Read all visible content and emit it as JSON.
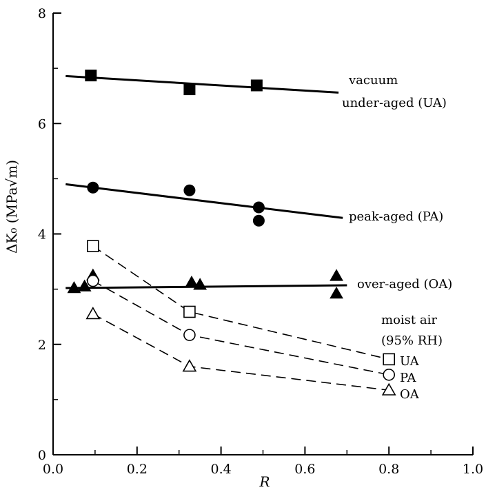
{
  "chart_data": {
    "type": "scatter",
    "xlabel": "R",
    "ylabel": "ΔK₀ (MPa√m)",
    "xlim": [
      0.0,
      1.0
    ],
    "ylim": [
      0,
      8
    ],
    "xticks": [
      "0.0",
      "0.2",
      "0.4",
      "0.6",
      "0.8",
      "1.0"
    ],
    "yticks": [
      "0",
      "2",
      "4",
      "6",
      "8"
    ],
    "grid": false,
    "vacuum_series": [
      {
        "marker": "filled-square",
        "points": [
          [
            0.09,
            6.87
          ],
          [
            0.325,
            6.62
          ],
          [
            0.485,
            6.69
          ]
        ],
        "fit": [
          [
            0.03,
            6.86
          ],
          [
            0.68,
            6.56
          ]
        ]
      },
      {
        "marker": "filled-circle",
        "points": [
          [
            0.095,
            4.84
          ],
          [
            0.325,
            4.79
          ],
          [
            0.49,
            4.48
          ],
          [
            0.49,
            4.24
          ]
        ],
        "fit": [
          [
            0.03,
            4.9
          ],
          [
            0.69,
            4.29
          ]
        ]
      },
      {
        "marker": "filled-triangle",
        "points": [
          [
            0.05,
            3.02
          ],
          [
            0.075,
            3.05
          ],
          [
            0.095,
            3.25
          ],
          [
            0.33,
            3.12
          ],
          [
            0.35,
            3.08
          ],
          [
            0.675,
            3.24
          ],
          [
            0.675,
            2.92
          ]
        ],
        "fit": [
          [
            0.03,
            3.02
          ],
          [
            0.7,
            3.07
          ]
        ]
      }
    ],
    "moist_series": [
      {
        "marker": "open-square",
        "points": [
          [
            0.095,
            3.78
          ],
          [
            0.325,
            2.59
          ],
          [
            0.8,
            1.73
          ]
        ]
      },
      {
        "marker": "open-circle",
        "points": [
          [
            0.095,
            3.15
          ],
          [
            0.325,
            2.17
          ],
          [
            0.8,
            1.45
          ]
        ]
      },
      {
        "marker": "open-triangle",
        "points": [
          [
            0.095,
            2.55
          ],
          [
            0.325,
            1.6
          ],
          [
            0.8,
            1.17
          ]
        ]
      }
    ],
    "annotations": {
      "vacuum": "vacuum",
      "ua": "under-aged (UA)",
      "pa": "peak-aged (PA)",
      "oa": "over-aged (OA)",
      "moist": "moist air",
      "rh": "(95% RH)",
      "moist_ua": "UA",
      "moist_pa": "PA",
      "moist_oa": "OA"
    }
  }
}
